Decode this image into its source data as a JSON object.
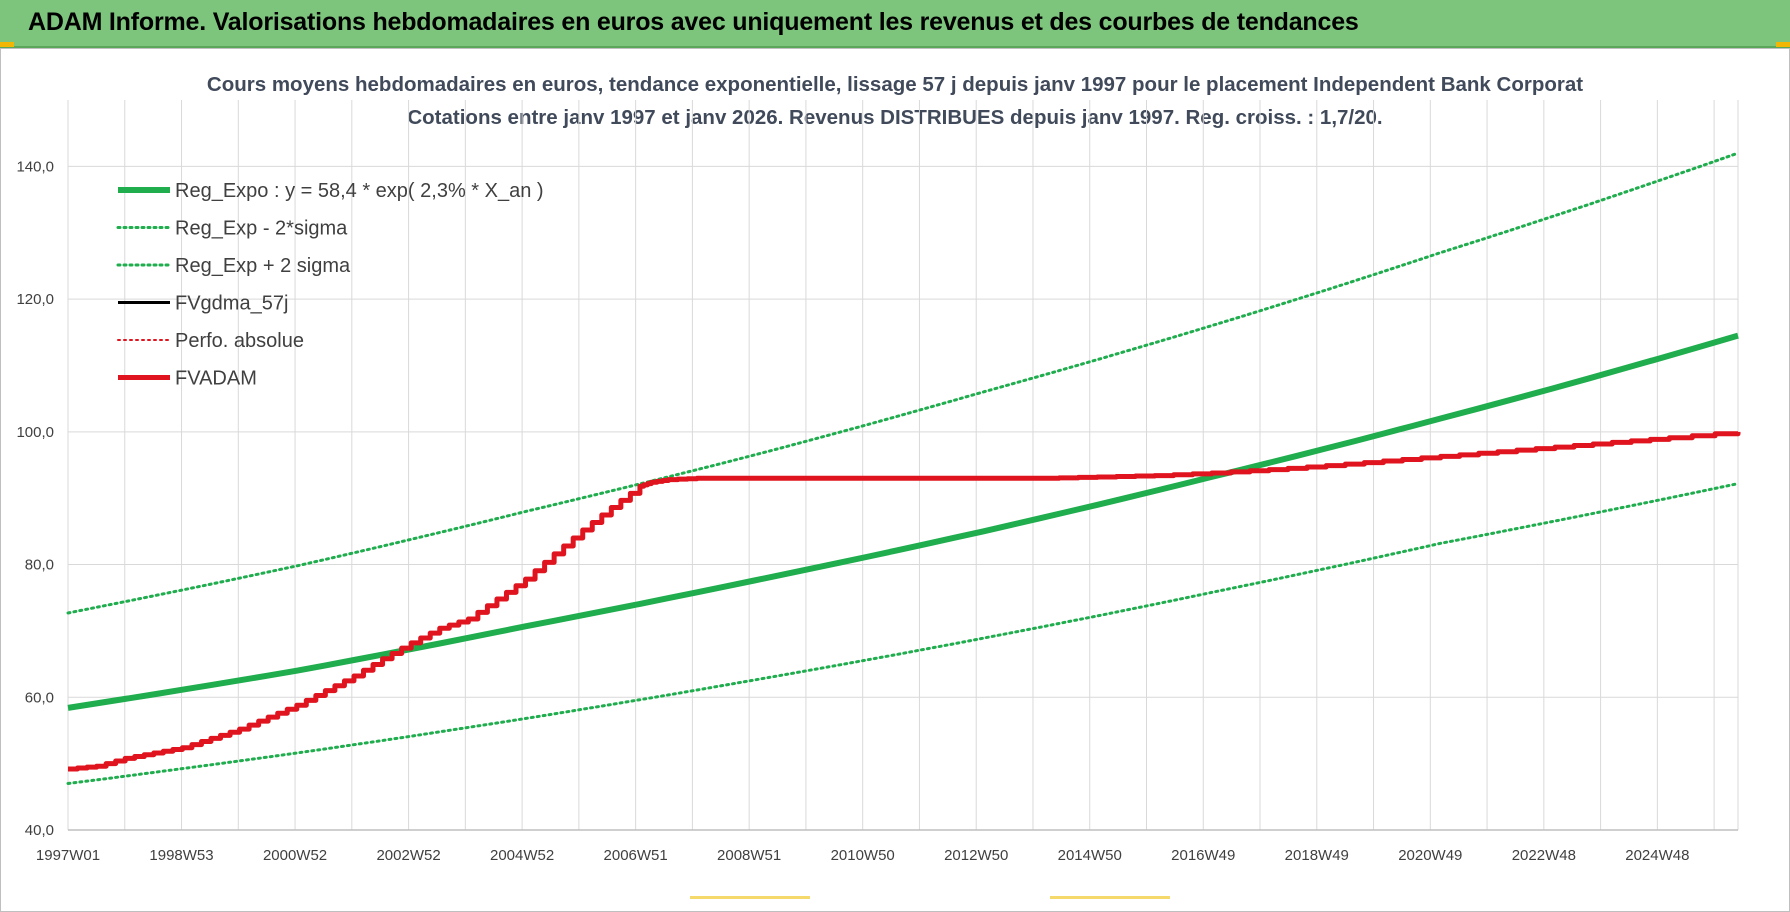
{
  "banner": {
    "title": "ADAM Informe. Valorisations hebdomadaires en euros avec uniquement les revenus et des courbes de tendances"
  },
  "colors": {
    "banner_bg": "#7dc47c",
    "green": "#1fad4e",
    "red": "#e0141e",
    "black": "#000000",
    "grid": "#d9d9d9",
    "title_text": "#404a5a"
  },
  "chart_data": {
    "type": "line",
    "title": "Cours moyens hebdomadaires en euros, tendance exponentielle, lissage 57 j depuis janv 1997  pour le placement Independent Bank Corporat",
    "subtitle": "Cotations entre janv 1997 et janv 2026. Revenus DISTRIBUES depuis janv 1997. Reg. croiss. : 1,7/20.",
    "xlabel": "",
    "ylabel": "",
    "x_tick_labels": [
      "1997W01",
      "1998W53",
      "2000W52",
      "2002W52",
      "2004W52",
      "2006W51",
      "2008W51",
      "2010W50",
      "2012W50",
      "2014W50",
      "2016W49",
      "2018W49",
      "2020W49",
      "2022W48",
      "2024W48"
    ],
    "y_tick_labels": [
      "40,0",
      "60,0",
      "80,0",
      "100,0",
      "120,0",
      "140,0"
    ],
    "xlim": [
      1997.0,
      2026.2
    ],
    "ylim": [
      40,
      150
    ],
    "grid": true,
    "legend_position": "top-left",
    "series": [
      {
        "name": "Reg_Expo : y = 58,4 * exp( 2,3% *  X_an )",
        "style": "solid",
        "width": 6,
        "color": "#1fad4e",
        "x": [
          1997.0,
          2001.0,
          2005.0,
          2009.0,
          2013.0,
          2017.0,
          2021.0,
          2026.2
        ],
        "y": [
          58.4,
          64.0,
          70.7,
          77.6,
          85.0,
          93.2,
          102.0,
          114.5
        ]
      },
      {
        "name": "Reg_Exp - 2*sigma",
        "style": "dotted",
        "width": 3,
        "color": "#1fad4e",
        "x": [
          1997.0,
          2001.0,
          2005.0,
          2009.0,
          2013.0,
          2017.0,
          2021.0,
          2026.2
        ],
        "y": [
          47.0,
          51.6,
          56.8,
          62.6,
          68.9,
          75.8,
          83.2,
          92.2
        ]
      },
      {
        "name": "Reg_Exp + 2 sigma",
        "style": "dotted",
        "width": 3,
        "color": "#1fad4e",
        "x": [
          1997.0,
          2001.0,
          2005.0,
          2009.0,
          2013.0,
          2017.0,
          2021.0,
          2026.2
        ],
        "y": [
          72.7,
          79.8,
          88.0,
          96.5,
          106.0,
          116.0,
          127.0,
          142.0
        ]
      },
      {
        "name": "FVgdma_57j",
        "style": "solid",
        "width": 3,
        "color": "#000000",
        "x": [],
        "y": []
      },
      {
        "name": "Perfo. absolue",
        "style": "dotted",
        "width": 2,
        "color": "#e0141e",
        "x": [],
        "y": []
      },
      {
        "name": "FVADAM",
        "style": "step",
        "width": 5,
        "color": "#e0141e",
        "x": [
          1997.0,
          1997.5,
          1998.0,
          1998.5,
          1999.0,
          1999.5,
          2000.0,
          2000.5,
          2001.0,
          2001.5,
          2002.0,
          2002.5,
          2003.0,
          2003.5,
          2004.0,
          2004.5,
          2005.0,
          2005.5,
          2006.0,
          2006.5,
          2007.0,
          2007.2,
          2007.5,
          2008.0,
          2009.0,
          2010.0,
          2012.0,
          2014.0,
          2015.0,
          2016.0,
          2017.0,
          2018.0,
          2019.0,
          2020.0,
          2021.0,
          2022.0,
          2023.0,
          2024.0,
          2025.0,
          2026.2
        ],
        "y": [
          49.2,
          49.6,
          50.8,
          51.6,
          52.4,
          53.8,
          55.2,
          57.0,
          58.8,
          61.0,
          63.2,
          65.8,
          68.2,
          70.4,
          71.8,
          74.8,
          77.8,
          81.6,
          85.2,
          88.6,
          91.8,
          92.4,
          92.8,
          93.0,
          93.0,
          93.0,
          93.0,
          93.0,
          93.2,
          93.4,
          93.8,
          94.3,
          94.9,
          95.6,
          96.3,
          97.0,
          97.7,
          98.4,
          99.1,
          100.0
        ]
      }
    ]
  }
}
